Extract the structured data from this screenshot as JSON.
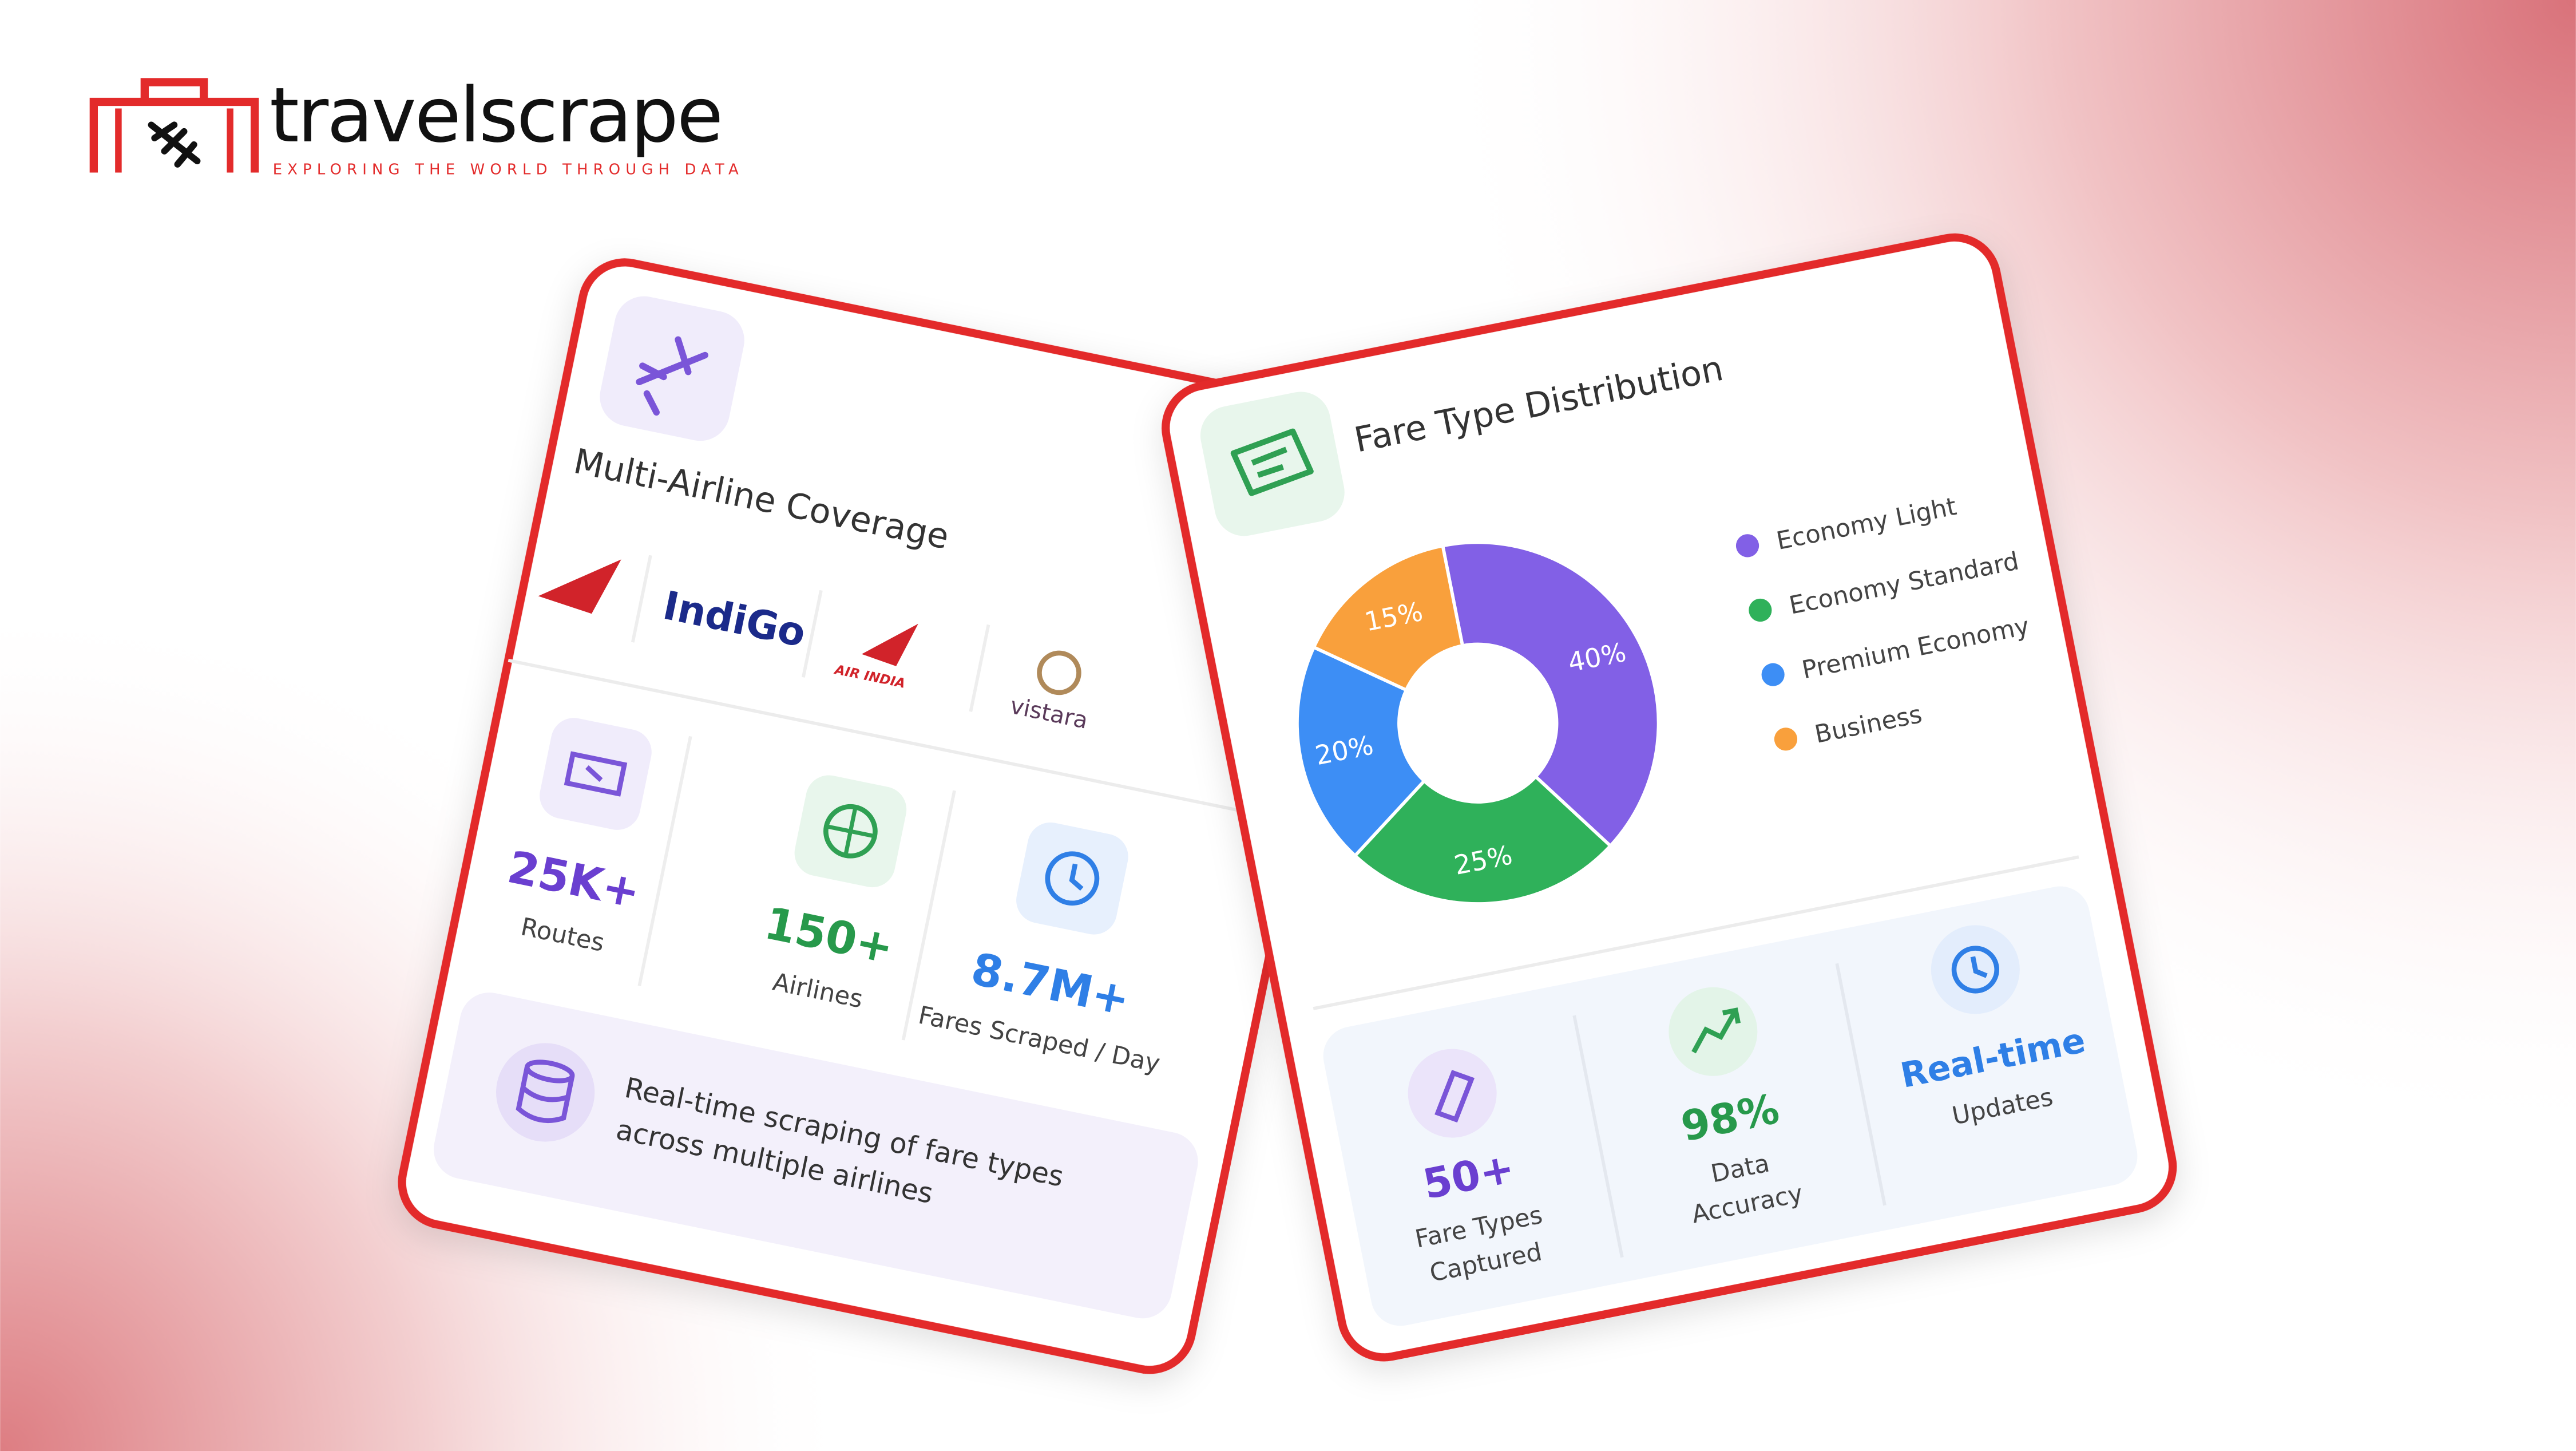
{
  "brand": {
    "name": "travelscrape",
    "tagline": "EXPLORING THE WORLD THROUGH DATA"
  },
  "coverage_card": {
    "title": "Multi-Airline Coverage",
    "airlines": [
      "IndiGo",
      "AIR INDIA",
      "vistara"
    ],
    "stats": [
      {
        "value": "25K+",
        "label": "Routes"
      },
      {
        "value": "150+",
        "label": "Airlines"
      },
      {
        "value": "8.7M+",
        "label": "Fares Scraped / Day"
      }
    ],
    "note": [
      "Real-time scraping of fare types",
      "across multiple airlines"
    ]
  },
  "chart_data": {
    "type": "pie",
    "title": "Fare Type Distribution",
    "categories": [
      "Economy Light",
      "Economy Standard",
      "Premium Economy",
      "Business"
    ],
    "values": [
      40,
      25,
      20,
      15
    ],
    "value_labels": [
      "40%",
      "25%",
      "20%",
      "15%"
    ],
    "colors": [
      "#8260e6",
      "#2fb15a",
      "#3d8ef5",
      "#f9a03c"
    ],
    "donut": true,
    "legend": "right"
  },
  "fare_stats": [
    {
      "value": "50+",
      "label": [
        "Fare Types",
        "Captured"
      ]
    },
    {
      "value": "98%",
      "label": [
        "Data",
        "Accuracy"
      ]
    },
    {
      "value": "Real-time",
      "label": [
        "Updates"
      ]
    }
  ]
}
